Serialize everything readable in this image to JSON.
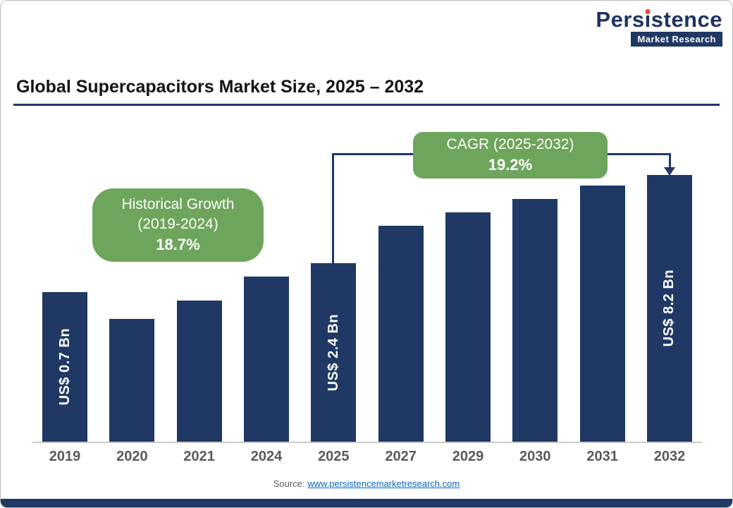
{
  "logo": {
    "brand_part1": "Pers",
    "brand_part2": "i",
    "brand_part3": "stence",
    "tagline": "Market Research"
  },
  "title": "Global Supercapacitors Market Size, 2025 – 2032",
  "callouts": {
    "historical": {
      "line1": "Historical Growth",
      "line2": "(2019-2024)",
      "value": "18.7%"
    },
    "cagr": {
      "line1": "CAGR (2025-2032)",
      "value": "19.2%"
    }
  },
  "source": {
    "prefix": "Source: ",
    "link": "www.persistencemarketresearch.com"
  },
  "colors": {
    "bar": "#1f3864",
    "callout_green": "#6ea55c",
    "connector": "#1f3864",
    "link": "#0563c1",
    "logo_red_dot": "#e8442e"
  },
  "chart_data": {
    "type": "bar",
    "title": "Global Supercapacitors Market Size, 2025 – 2032",
    "categories": [
      "2019",
      "2020",
      "2021",
      "2024",
      "2025",
      "2027",
      "2029",
      "2030",
      "2031",
      "2032"
    ],
    "values_usd_bn": [
      0.7,
      null,
      null,
      null,
      2.4,
      null,
      null,
      null,
      null,
      8.2
    ],
    "bar_labels": [
      "US$ 0.7 Bn",
      "",
      "",
      "",
      "US$ 2.4 Bn",
      "",
      "",
      "",
      "",
      "US$ 8.2 Bn"
    ],
    "relative_heights_pct": [
      56,
      46,
      53,
      62,
      67,
      81,
      86,
      91,
      96,
      100
    ],
    "historical_growth_2019_2024": "18.7%",
    "cagr_2025_2032": "19.2%",
    "xlabel": "",
    "ylabel": "",
    "grid": false,
    "legend": false,
    "bar_color": "#1f3864"
  }
}
